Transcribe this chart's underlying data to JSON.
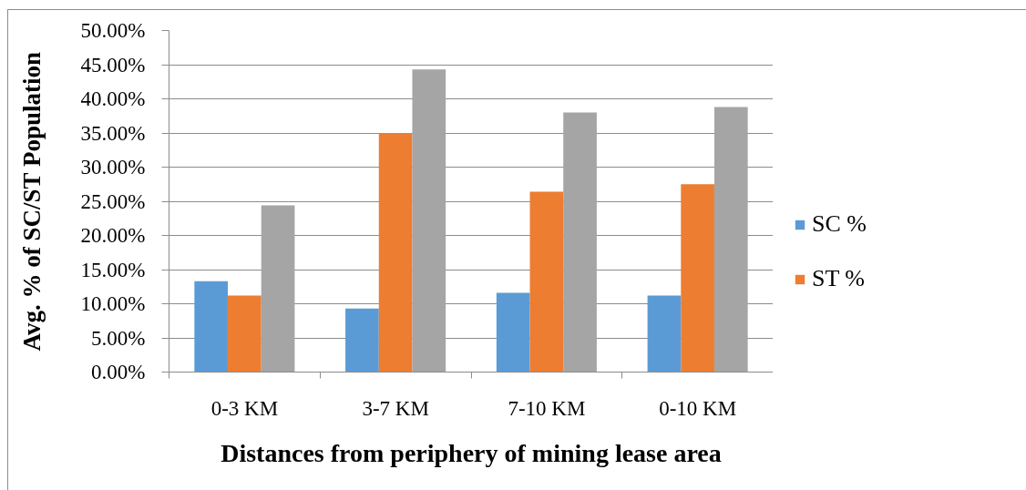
{
  "chart_data": {
    "type": "bar",
    "xlabel": "Distances from periphery of mining lease area",
    "ylabel": "Avg. % of SC/ST Population",
    "categories": [
      "0-3 KM",
      "3-7 KM",
      "7-10 KM",
      "0-10 KM"
    ],
    "series": [
      {
        "name": "SC %",
        "color": "#5b9bd5",
        "values": [
          13.3,
          9.3,
          11.6,
          11.2
        ]
      },
      {
        "name": "ST %",
        "color": "#ed7d31",
        "values": [
          11.2,
          35.0,
          26.4,
          27.5
        ]
      },
      {
        "color": "#a5a5a5",
        "values": [
          24.4,
          44.3,
          38.0,
          38.8
        ]
      }
    ],
    "ylim": [
      0,
      50
    ],
    "yticks": [
      {
        "value": 0,
        "label": "0.00%"
      },
      {
        "value": 5,
        "label": "5.00%"
      },
      {
        "value": 10,
        "label": "10.00%"
      },
      {
        "value": 15,
        "label": "15.00%"
      },
      {
        "value": 20,
        "label": "20.00%"
      },
      {
        "value": 25,
        "label": "25.00%"
      },
      {
        "value": 30,
        "label": "30.00%"
      },
      {
        "value": 35,
        "label": "35.00%"
      },
      {
        "value": 40,
        "label": "40.00%"
      },
      {
        "value": 45,
        "label": "45.00%"
      },
      {
        "value": 50,
        "label": "50.00%"
      }
    ],
    "grid": "y",
    "legend": "right"
  }
}
